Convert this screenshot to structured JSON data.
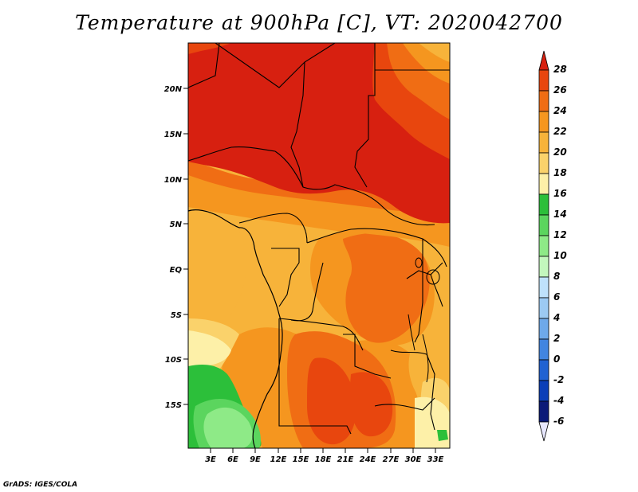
{
  "title": "Temperature at 900hPa [C], VT: 2020042700",
  "credit": "GrADS: IGES/COLA",
  "map": {
    "lat_labels": [
      "20N",
      "15N",
      "10N",
      "5N",
      "EQ",
      "5S",
      "10S",
      "15S"
    ],
    "lon_labels": [
      "3E",
      "6E",
      "9E",
      "12E",
      "15E",
      "18E",
      "21E",
      "24E",
      "27E",
      "30E",
      "33E"
    ]
  },
  "colorbar": {
    "labels": [
      "28",
      "26",
      "24",
      "22",
      "20",
      "18",
      "16",
      "14",
      "12",
      "10",
      "8",
      "6",
      "4",
      "2",
      "0",
      "-2",
      "-4",
      "-6"
    ],
    "colors": [
      "#d72010",
      "#e8460e",
      "#f06d14",
      "#f5961f",
      "#f7b33a",
      "#fad26b",
      "#fdf0a8",
      "#2cbf3a",
      "#5bd55e",
      "#8eea87",
      "#c3f7bd",
      "#bfe2fb",
      "#9ccaf3",
      "#6ea9ea",
      "#4285e0",
      "#2062d2",
      "#0c3fb8",
      "#0b1a78",
      "#e8e8ff"
    ]
  }
}
